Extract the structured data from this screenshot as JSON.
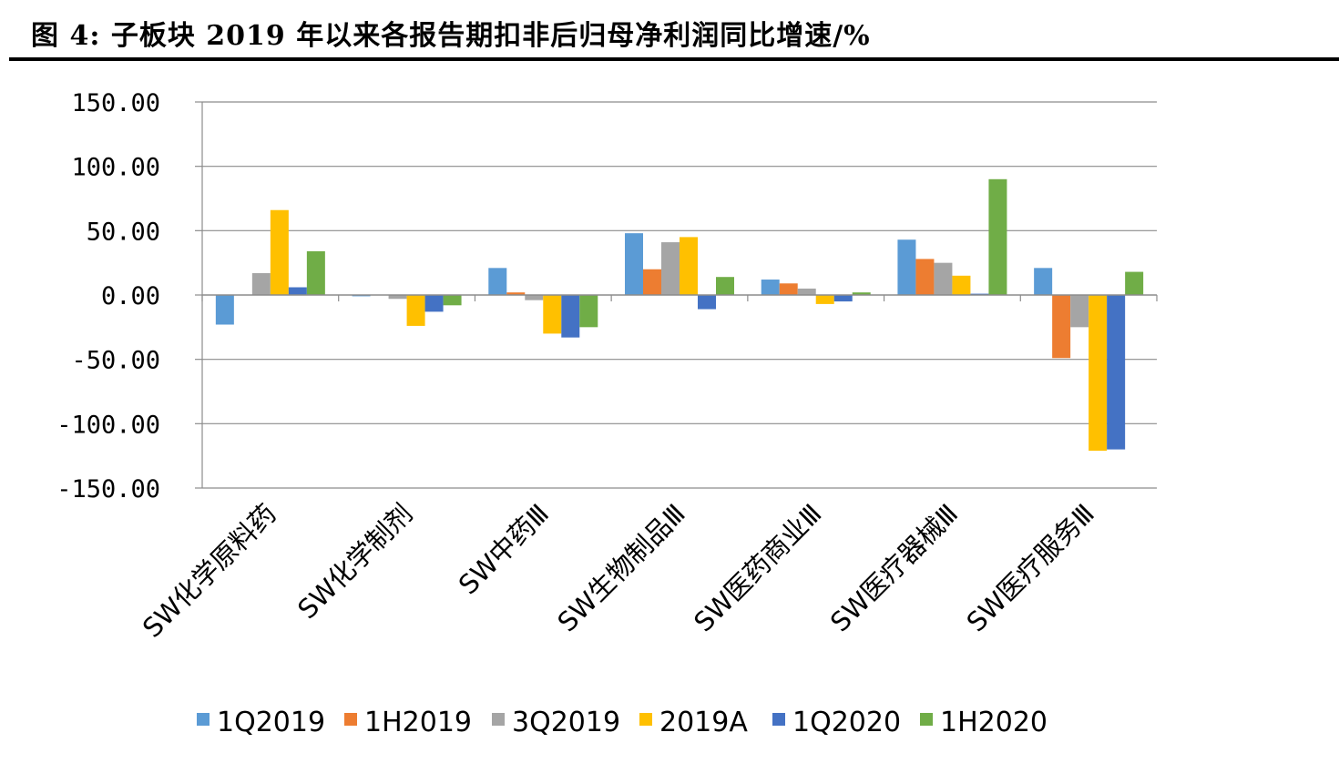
{
  "title": "图 4: 子板块 2019 年以来各报告期扣非后归母净利润同比增速/%",
  "chart_data": {
    "type": "bar",
    "categories": [
      "SW化学原料药",
      "SW化学制剂",
      "SW中药Ⅲ",
      "SW生物制品Ⅲ",
      "SW医药商业Ⅲ",
      "SW医疗器械Ⅲ",
      "SW医疗服务Ⅲ"
    ],
    "series": [
      {
        "name": "1Q2019",
        "color": "#5B9BD5",
        "values": [
          -23,
          -1,
          21,
          48,
          12,
          43,
          21
        ]
      },
      {
        "name": "1H2019",
        "color": "#ED7D31",
        "values": [
          0,
          0,
          2,
          20,
          9,
          28,
          -49
        ]
      },
      {
        "name": "3Q2019",
        "color": "#A5A5A5",
        "values": [
          17,
          -3,
          -4,
          41,
          5,
          25,
          -25
        ]
      },
      {
        "name": "2019A",
        "color": "#FFC000",
        "values": [
          66,
          -24,
          -30,
          45,
          -7,
          15,
          -121
        ]
      },
      {
        "name": "1Q2020",
        "color": "#4472C4",
        "values": [
          6,
          -13,
          -33,
          -11,
          -5,
          1,
          -120
        ]
      },
      {
        "name": "1H2020",
        "color": "#70AD47",
        "values": [
          34,
          -8,
          -25,
          14,
          2,
          90,
          18
        ]
      }
    ],
    "yticks": [
      "150.00",
      "100.00",
      "50.00",
      "0.00",
      "-50.00",
      "-100.00",
      "-150.00"
    ],
    "ylim": [
      -150,
      150
    ],
    "grid": true,
    "legend": "bottom"
  }
}
